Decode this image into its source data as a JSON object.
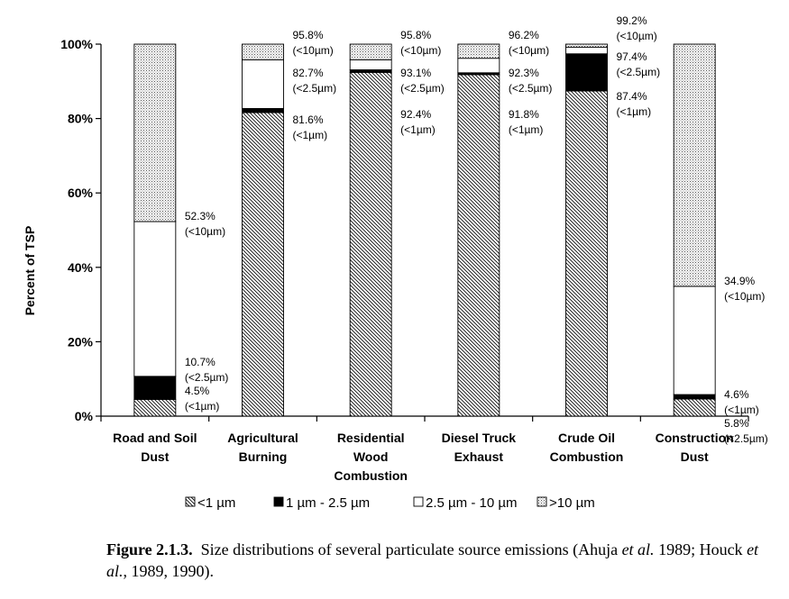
{
  "chart_data": {
    "type": "bar",
    "stacked": true,
    "ylabel": "Percent of TSP",
    "ylim": [
      0,
      100
    ],
    "yticks": [
      "0%",
      "20%",
      "40%",
      "60%",
      "80%",
      "100%"
    ],
    "categories": [
      [
        "Road and Soil",
        "Dust"
      ],
      [
        "Agricultural",
        "Burning"
      ],
      [
        "Residential",
        "Wood",
        "Combustion"
      ],
      [
        "Diesel Truck",
        "Exhaust"
      ],
      [
        "Crude Oil",
        "Combustion"
      ],
      [
        "Construction",
        "Dust"
      ]
    ],
    "series": [
      {
        "name": "<1 µm",
        "values": [
          4.5,
          81.6,
          92.4,
          91.8,
          87.4,
          4.6
        ]
      },
      {
        "name": "1 µm - 2.5 µm",
        "values": [
          6.2,
          1.1,
          0.7,
          0.5,
          10.0,
          1.2
        ]
      },
      {
        "name": "2.5 µm - 10 µm",
        "values": [
          41.6,
          13.1,
          2.7,
          3.9,
          1.8,
          29.1
        ]
      },
      {
        "name": ">10 µm",
        "values": [
          47.7,
          4.2,
          4.2,
          3.8,
          0.8,
          65.1
        ]
      }
    ],
    "legend_position": "bottom",
    "annotations": [
      [
        [
          "52.3%",
          "(<10µm)"
        ],
        [
          "10.7%",
          "(<2.5µm)"
        ],
        [
          "4.5%",
          "(<1µm)"
        ]
      ],
      [
        [
          "95.8%",
          "(<10µm)"
        ],
        [
          "82.7%",
          "(<2.5µm)"
        ],
        [
          "81.6%",
          "(<1µm)"
        ]
      ],
      [
        [
          "95.8%",
          "(<10µm)"
        ],
        [
          "93.1%",
          "(<2.5µm)"
        ],
        [
          "92.4%",
          "(<1µm)"
        ]
      ],
      [
        [
          "96.2%",
          "(<10µm)"
        ],
        [
          "92.3%",
          "(<2.5µm)"
        ],
        [
          "91.8%",
          "(<1µm)"
        ]
      ],
      [
        [
          "99.2%",
          "(<10µm)"
        ],
        [
          "97.4%",
          "(<2.5µm)"
        ],
        [
          "87.4%",
          "(<1µm)"
        ]
      ],
      [
        [
          "34.9%",
          "(<10µm)"
        ],
        [
          "5.8%",
          "(<2.5µm)"
        ],
        [
          "4.6%",
          "(<1µm)"
        ]
      ]
    ]
  },
  "caption": {
    "label": "Figure 2.1.3.",
    "text_before": "Size distributions of several particulate source emissions (Ahuja ",
    "italic1": "et al.",
    "text_mid": " 1989; Houck ",
    "italic2": "et al.",
    "text_after": ", 1989, 1990)."
  }
}
